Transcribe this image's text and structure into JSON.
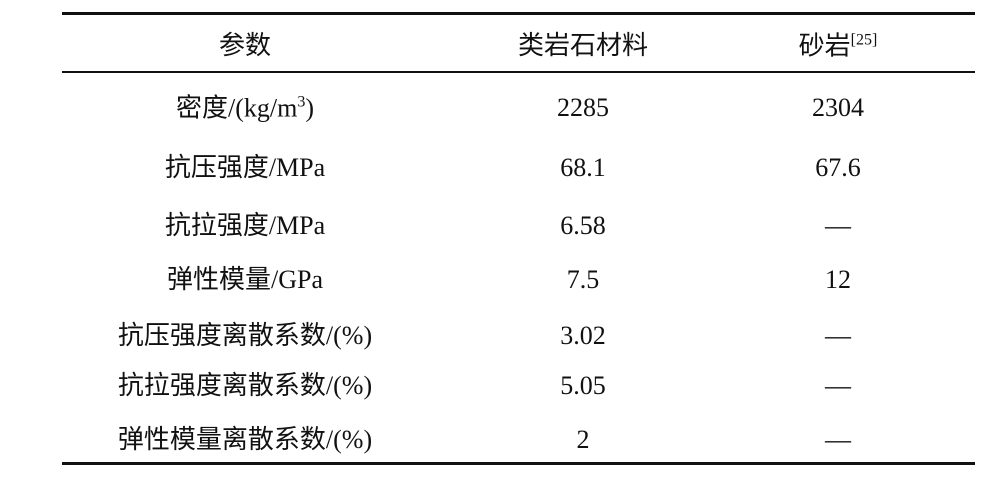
{
  "table": {
    "header": [
      "参数",
      "类岩石材料",
      {
        "text": "砂岩",
        "sup": "[25]"
      }
    ],
    "rows": [
      [
        {
          "text": "密度/(kg/m",
          "sup": "3",
          "tail": ")"
        },
        "2285",
        "2304"
      ],
      [
        "抗压强度/MPa",
        "68.1",
        "67.6"
      ],
      [
        "抗拉强度/MPa",
        "6.58",
        "—"
      ],
      [
        "弹性模量/GPa",
        "7.5",
        "12"
      ],
      [
        "抗压强度离散系数/(%)",
        "3.02",
        "—"
      ],
      [
        "抗拉强度离散系数/(%)",
        "5.05",
        "—"
      ],
      [
        "弹性模量离散系数/(%)",
        "2",
        "—"
      ]
    ]
  }
}
